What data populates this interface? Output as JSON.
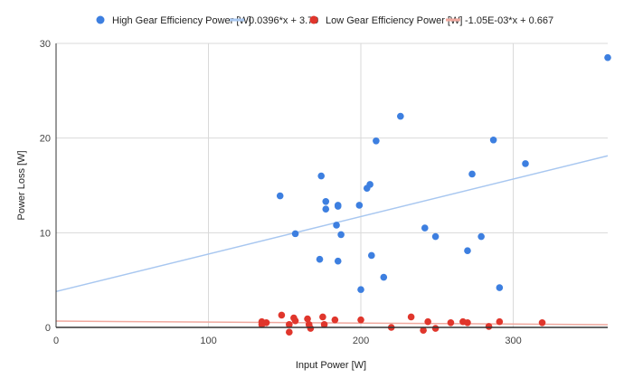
{
  "chart_data": {
    "type": "scatter",
    "xlabel": "Input Power [W]",
    "ylabel": "Power Loss [W]",
    "xlim": [
      0,
      362
    ],
    "ylim": [
      0,
      30
    ],
    "xticks": [
      0,
      100,
      200,
      300
    ],
    "yticks": [
      0,
      10,
      20,
      30
    ],
    "grid": true,
    "legend_position": "top",
    "series": [
      {
        "name": "High Gear Efficiency Power [W]",
        "kind": "points",
        "color": "#3d7fe0",
        "points": [
          [
            147,
            13.9
          ],
          [
            157,
            9.9
          ],
          [
            173,
            7.2
          ],
          [
            174,
            16.0
          ],
          [
            177,
            13.3
          ],
          [
            177,
            12.5
          ],
          [
            184,
            10.8
          ],
          [
            185,
            12.9
          ],
          [
            185,
            12.8
          ],
          [
            185,
            7.0
          ],
          [
            187,
            9.8
          ],
          [
            199,
            12.9
          ],
          [
            200,
            4.0
          ],
          [
            204,
            14.7
          ],
          [
            206,
            15.1
          ],
          [
            207,
            7.6
          ],
          [
            210,
            19.7
          ],
          [
            215,
            5.3
          ],
          [
            226,
            22.3
          ],
          [
            242,
            10.5
          ],
          [
            249,
            9.6
          ],
          [
            270,
            8.1
          ],
          [
            273,
            16.2
          ],
          [
            279,
            9.6
          ],
          [
            287,
            19.8
          ],
          [
            291,
            4.2
          ],
          [
            308,
            17.3
          ],
          [
            362,
            28.5
          ]
        ]
      },
      {
        "name": "0.0396*x + 3.79",
        "kind": "trendline",
        "color": "#a8c7f0",
        "slope": 0.0396,
        "intercept": 3.79
      },
      {
        "name": "Low Gear Efficiency Power [W]",
        "kind": "points",
        "color": "#e0362c",
        "points": [
          [
            135,
            0.6
          ],
          [
            135,
            0.3
          ],
          [
            138,
            0.5
          ],
          [
            148,
            1.3
          ],
          [
            153,
            0.3
          ],
          [
            153,
            -0.5
          ],
          [
            156,
            1.0
          ],
          [
            157,
            0.7
          ],
          [
            165,
            0.9
          ],
          [
            166,
            0.3
          ],
          [
            167,
            -0.1
          ],
          [
            175,
            1.1
          ],
          [
            176,
            0.3
          ],
          [
            183,
            0.8
          ],
          [
            200,
            0.8
          ],
          [
            220,
            0.0
          ],
          [
            233,
            1.1
          ],
          [
            241,
            -0.3
          ],
          [
            244,
            0.6
          ],
          [
            249,
            -0.1
          ],
          [
            259,
            0.5
          ],
          [
            267,
            0.6
          ],
          [
            270,
            0.5
          ],
          [
            284,
            0.1
          ],
          [
            291,
            0.6
          ],
          [
            319,
            0.5
          ]
        ]
      },
      {
        "name": "-1.05E-03*x + 0.667",
        "kind": "trendline",
        "color": "#f0a89e",
        "slope": -0.00105,
        "intercept": 0.667
      }
    ]
  }
}
